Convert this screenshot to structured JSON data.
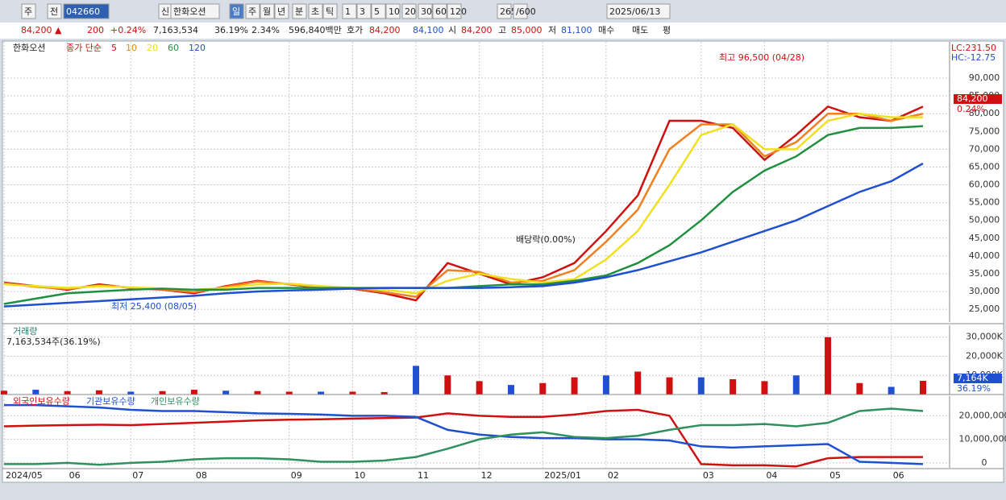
{
  "toolbar": {
    "items": [
      "주",
      "전",
      "042660",
      "신",
      "한화오션",
      "일",
      "주",
      "월",
      "년",
      "분",
      "초",
      "틱",
      "1",
      "3",
      "5",
      "10",
      "20",
      "30",
      "60",
      "120",
      "265",
      "/600",
      "2025/06/13"
    ]
  },
  "infobar": {
    "items": [
      "84,200 ▲",
      "200",
      "+0.24%",
      "7,163,534",
      "36.19%",
      "2.34%",
      "596,840백만",
      "호가",
      "84,200",
      "84,100",
      "시",
      "84,200",
      "고",
      "85,000",
      "저",
      "81,100",
      "매수",
      "매도",
      "평"
    ]
  },
  "chart_data": [
    {
      "type": "line",
      "title": "한화오션",
      "subtitle": "종가 단순",
      "categories": [
        "2024/05",
        null,
        "06",
        null,
        "07",
        null,
        "08",
        null,
        null,
        "09",
        null,
        "10",
        null,
        "11",
        null,
        "12",
        null,
        "2025/01",
        null,
        "02",
        null,
        null,
        "03",
        null,
        "04",
        null,
        "05",
        null,
        "06",
        null
      ],
      "series": [
        {
          "name": "5",
          "color": "#d01010",
          "values": [
            32500,
            31500,
            30500,
            32000,
            31000,
            30500,
            29500,
            31500,
            33000,
            32000,
            31000,
            30800,
            29500,
            27500,
            38000,
            35000,
            32000,
            34000,
            38000,
            47000,
            57000,
            78000,
            78000,
            76000,
            67000,
            74000,
            82000,
            79000,
            78000,
            82000
          ]
        },
        {
          "name": "10",
          "color": "#f08020",
          "values": [
            32300,
            31300,
            30700,
            31700,
            31100,
            30600,
            29800,
            31300,
            32800,
            32100,
            31200,
            30900,
            29800,
            28500,
            36000,
            35500,
            32500,
            33000,
            36000,
            44000,
            53000,
            70000,
            77000,
            77000,
            68000,
            72000,
            80000,
            80000,
            78000,
            80000
          ]
        },
        {
          "name": "20",
          "color": "#f0e020",
          "values": [
            32000,
            31500,
            31000,
            31500,
            31200,
            30800,
            30500,
            31000,
            32000,
            32200,
            31500,
            31000,
            30500,
            29500,
            33000,
            35000,
            33500,
            32500,
            33500,
            39000,
            47000,
            60000,
            74000,
            77000,
            70000,
            70000,
            78000,
            80000,
            79000,
            79000
          ]
        },
        {
          "name": "60",
          "color": "#209040",
          "values": [
            26500,
            28000,
            29500,
            30000,
            30500,
            30800,
            30500,
            30500,
            31000,
            31000,
            31000,
            31000,
            31000,
            31000,
            31000,
            31500,
            32000,
            32000,
            33000,
            34500,
            38000,
            43000,
            50000,
            58000,
            64000,
            68000,
            74000,
            76000,
            76000,
            76500
          ]
        },
        {
          "name": "120",
          "color": "#2050d0",
          "values": [
            25800,
            26300,
            26800,
            27300,
            27800,
            28300,
            28800,
            29500,
            30000,
            30300,
            30500,
            30800,
            31000,
            31000,
            31000,
            31000,
            31200,
            31500,
            32500,
            34000,
            36000,
            38500,
            41000,
            44000,
            47000,
            50000,
            54000,
            58000,
            61000,
            66000
          ]
        }
      ],
      "ylim": [
        21400,
        100200
      ],
      "yticks": [
        {
          "value": 25000,
          "label": "25,000"
        },
        {
          "value": 30000,
          "label": "30,000"
        },
        {
          "value": 35000,
          "label": "35,000"
        },
        {
          "value": 40000,
          "label": "40,000"
        },
        {
          "value": 45000,
          "label": "45,000"
        },
        {
          "value": 50000,
          "label": "50,000"
        },
        {
          "value": 55000,
          "label": "55,000"
        },
        {
          "value": 60000,
          "label": "60,000"
        },
        {
          "value": 65000,
          "label": "65,000"
        },
        {
          "value": 70000,
          "label": "70,000"
        },
        {
          "value": 75000,
          "label": "75,000"
        },
        {
          "value": 80000,
          "label": "80,000"
        },
        {
          "value": 85000,
          "label": "85,000"
        },
        {
          "value": 90000,
          "label": "90,000"
        }
      ],
      "annotations": [
        "최고 96,500 (04/28)",
        "최저 25,400 (08/05)",
        "배당락(0.00%)"
      ],
      "corner_labels": [
        "LC:231.50",
        "HC:-12.75"
      ],
      "last_labels": [
        "84,200",
        "0.24%"
      ],
      "grid": true
    },
    {
      "type": "bar",
      "title": "거래량",
      "subtitle": "7,163,534주(36.19%)",
      "color": "#d01010",
      "values": [
        2000,
        2500,
        1800,
        2200,
        1500,
        1800,
        2500,
        2000,
        1800,
        1500,
        1500,
        1500,
        1300,
        15000,
        10000,
        7000,
        5000,
        6000,
        9000,
        10000,
        12000,
        9000,
        9000,
        8000,
        7000,
        10000,
        30000,
        6000,
        4000,
        7164
      ],
      "ylim": [
        0,
        36200
      ],
      "yticks": [
        {
          "value": 10000,
          "label": "10,000K"
        },
        {
          "value": 20000,
          "label": "20,000K"
        },
        {
          "value": 30000,
          "label": "30,000K"
        }
      ],
      "last_labels": [
        "7,164K",
        "36.19%"
      ],
      "grid": true
    },
    {
      "type": "line",
      "series": [
        {
          "name": "외국인보유수량",
          "color": "#d01010",
          "values": [
            15500000,
            15800000,
            16000000,
            16200000,
            16000000,
            16500000,
            17000000,
            17500000,
            18000000,
            18300000,
            18500000,
            18800000,
            19000000,
            19200000,
            21000000,
            20000000,
            19500000,
            19500000,
            20500000,
            22000000,
            22500000,
            20000000,
            -500000,
            -1000000,
            -1000000,
            -1500000,
            2000000,
            2500000,
            2500000,
            2500000
          ]
        },
        {
          "name": "기관보유수량",
          "color": "#2050d0",
          "values": [
            24500000,
            24500000,
            24000000,
            23500000,
            22500000,
            22000000,
            22000000,
            21500000,
            21000000,
            20800000,
            20500000,
            20000000,
            20000000,
            19500000,
            14000000,
            12000000,
            11000000,
            10500000,
            10500000,
            10000000,
            10000000,
            9500000,
            7000000,
            6500000,
            7000000,
            7500000,
            8000000,
            500000,
            0,
            -500000
          ]
        },
        {
          "name": "개인보유수량",
          "color": "#309060",
          "values": [
            -500000,
            -500000,
            0,
            -800000,
            0,
            500000,
            1500000,
            2000000,
            2000000,
            1500000,
            500000,
            500000,
            1000000,
            2500000,
            6000000,
            10000000,
            12000000,
            13000000,
            11000000,
            10500000,
            11500000,
            14000000,
            16000000,
            16000000,
            16500000,
            15500000,
            17000000,
            22000000,
            23000000,
            22000000
          ]
        }
      ],
      "ylim": [
        -2070000,
        28300000
      ],
      "yticks": [
        0,
        {
          "value": 10000000,
          "label": "10,000,000"
        },
        {
          "value": 20000000,
          "label": "20,000,000"
        }
      ],
      "grid": true
    }
  ]
}
